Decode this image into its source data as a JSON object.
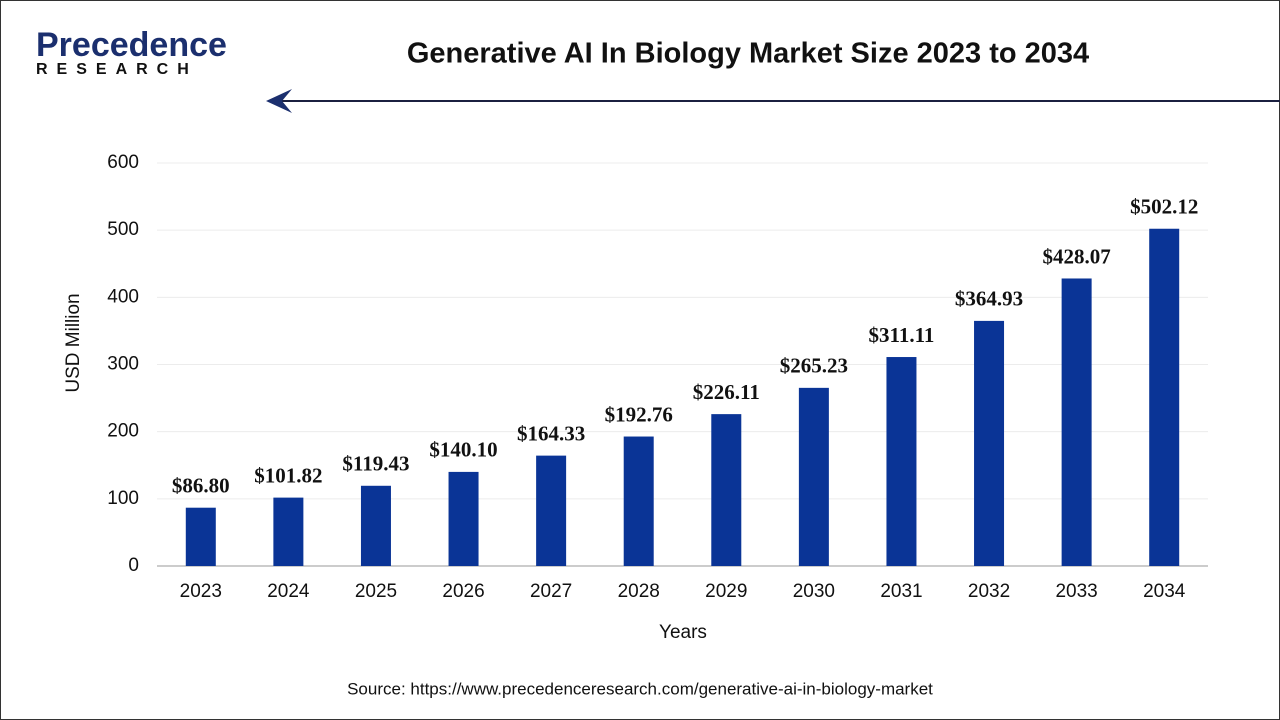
{
  "logo": {
    "name": "Precedence",
    "tagline": "RESEARCH"
  },
  "chart_data": {
    "type": "bar",
    "title": "Generative AI In Biology Market Size 2023 to 2034",
    "categories": [
      "2023",
      "2024",
      "2025",
      "2026",
      "2027",
      "2028",
      "2029",
      "2030",
      "2031",
      "2032",
      "2033",
      "2034"
    ],
    "values": [
      86.8,
      101.82,
      119.43,
      140.1,
      164.33,
      192.76,
      226.11,
      265.23,
      311.11,
      364.93,
      428.07,
      502.12
    ],
    "value_labels": [
      "$86.80",
      "$101.82",
      "$119.43",
      "$140.10",
      "$164.33",
      "$192.76",
      "$226.11",
      "$265.23",
      "$311.11",
      "$364.93",
      "$428.07",
      "$502.12"
    ],
    "color": "#0a3496",
    "ylim": [
      0,
      600
    ],
    "yticks": [
      0,
      100,
      200,
      300,
      400,
      500,
      600
    ],
    "grid": true,
    "ylabel": "USD Million",
    "xlabel": "Years",
    "source": "Source: https://www.precedenceresearch.com/generative-ai-in-biology-market"
  }
}
